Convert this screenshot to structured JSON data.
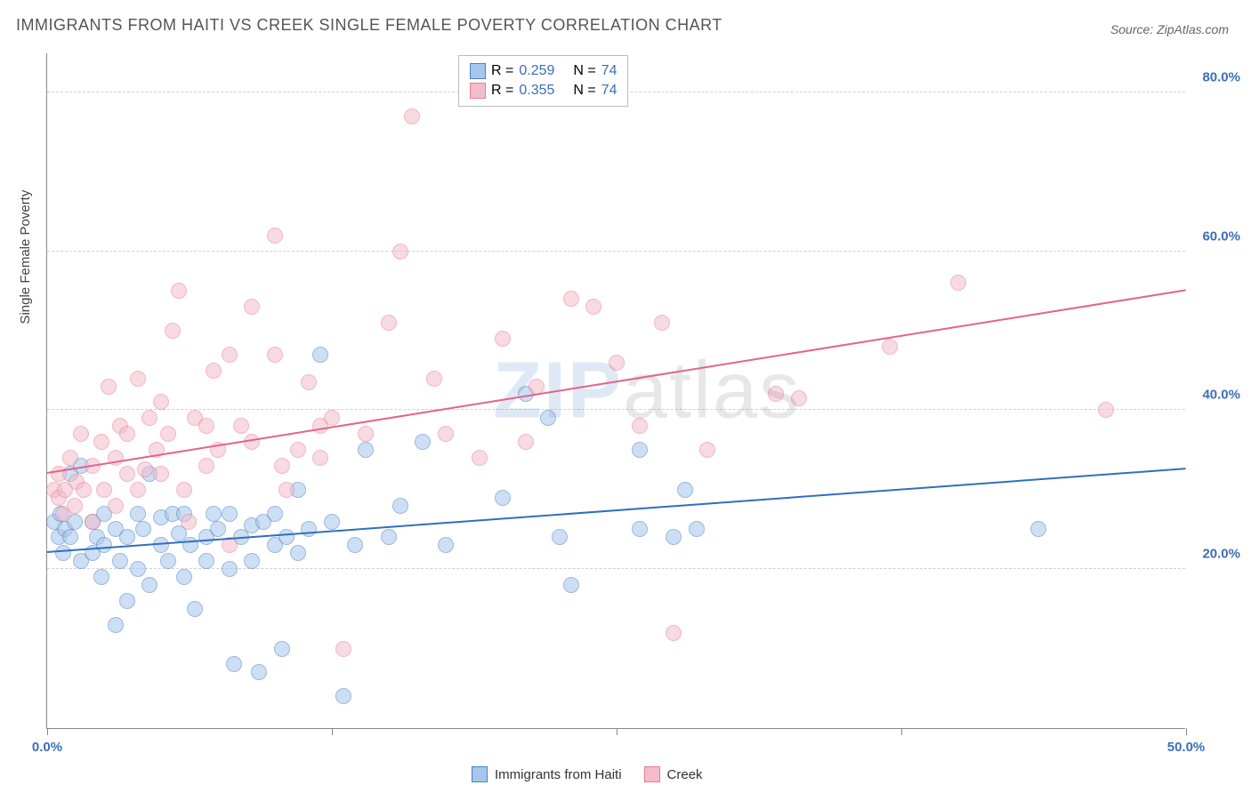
{
  "title": "IMMIGRANTS FROM HAITI VS CREEK SINGLE FEMALE POVERTY CORRELATION CHART",
  "source_label": "Source: ",
  "source_name": "ZipAtlas.com",
  "watermark_zip": "ZIP",
  "watermark_atlas": "atlas",
  "chart": {
    "type": "scatter",
    "background_color": "#ffffff",
    "grid_color": "#d0d0d0",
    "axis_color": "#888888",
    "tick_label_color": "#3b6fb5",
    "y_axis_label": "Single Female Poverty",
    "x_axis": {
      "min": 0.0,
      "max": 50.0,
      "ticks": [
        0.0,
        12.5,
        25.0,
        37.5,
        50.0
      ],
      "labels": {
        "0": "0.0%",
        "50": "50.0%"
      }
    },
    "y_axis": {
      "min": 0.0,
      "max": 85.0,
      "grid_ticks": [
        20.0,
        40.0,
        60.0,
        80.0
      ],
      "labels": {
        "20": "20.0%",
        "40": "40.0%",
        "60": "60.0%",
        "80": "80.0%"
      }
    },
    "point_radius": 9,
    "point_opacity": 0.55,
    "series": [
      {
        "name": "Immigrants from Haiti",
        "fill_color": "#a6c6ec",
        "stroke_color": "#4b7fc2",
        "R": "0.259",
        "N": "74",
        "trend": {
          "y_at_xmin": 22.0,
          "y_at_xmax": 32.5,
          "color": "#2f6fc1",
          "width": 2
        },
        "points": [
          [
            0.3,
            26
          ],
          [
            0.5,
            24
          ],
          [
            0.6,
            27
          ],
          [
            0.7,
            22
          ],
          [
            0.8,
            25
          ],
          [
            1.0,
            32
          ],
          [
            1.0,
            24
          ],
          [
            1.2,
            26
          ],
          [
            1.5,
            21
          ],
          [
            1.5,
            33
          ],
          [
            2.0,
            26
          ],
          [
            2.0,
            22
          ],
          [
            2.2,
            24
          ],
          [
            2.4,
            19
          ],
          [
            2.5,
            27
          ],
          [
            2.5,
            23
          ],
          [
            3.0,
            25
          ],
          [
            3.0,
            13
          ],
          [
            3.2,
            21
          ],
          [
            3.5,
            16
          ],
          [
            3.5,
            24
          ],
          [
            4.0,
            27
          ],
          [
            4.0,
            20
          ],
          [
            4.2,
            25
          ],
          [
            4.5,
            18
          ],
          [
            4.5,
            32
          ],
          [
            5.0,
            23
          ],
          [
            5.0,
            26.5
          ],
          [
            5.3,
            21
          ],
          [
            5.5,
            27
          ],
          [
            5.8,
            24.5
          ],
          [
            6.0,
            27
          ],
          [
            6.0,
            19
          ],
          [
            6.3,
            23
          ],
          [
            6.5,
            15
          ],
          [
            7.0,
            24
          ],
          [
            7.0,
            21
          ],
          [
            7.3,
            27
          ],
          [
            7.5,
            25
          ],
          [
            8.0,
            27
          ],
          [
            8.0,
            20
          ],
          [
            8.2,
            8
          ],
          [
            8.5,
            24
          ],
          [
            9.0,
            25.5
          ],
          [
            9.0,
            21
          ],
          [
            9.3,
            7
          ],
          [
            9.5,
            26
          ],
          [
            10.0,
            23
          ],
          [
            10.0,
            27
          ],
          [
            10.3,
            10
          ],
          [
            10.5,
            24
          ],
          [
            11.0,
            22
          ],
          [
            11.0,
            30
          ],
          [
            11.5,
            25
          ],
          [
            12.0,
            47
          ],
          [
            12.5,
            26
          ],
          [
            13.0,
            4
          ],
          [
            13.5,
            23
          ],
          [
            14.0,
            35
          ],
          [
            15.0,
            24
          ],
          [
            15.5,
            28
          ],
          [
            16.5,
            36
          ],
          [
            17.5,
            23
          ],
          [
            20.0,
            29
          ],
          [
            21.0,
            42
          ],
          [
            22.0,
            39
          ],
          [
            22.5,
            24
          ],
          [
            23.0,
            18
          ],
          [
            26.0,
            25
          ],
          [
            26.0,
            35
          ],
          [
            27.5,
            24
          ],
          [
            28.0,
            30
          ],
          [
            28.5,
            25
          ],
          [
            43.5,
            25
          ]
        ]
      },
      {
        "name": "Creek",
        "fill_color": "#f3bcc9",
        "stroke_color": "#e87b9a",
        "R": "0.355",
        "N": "74",
        "trend": {
          "y_at_xmin": 32.0,
          "y_at_xmax": 55.0,
          "color": "#e36488",
          "width": 2
        },
        "points": [
          [
            0.3,
            30
          ],
          [
            0.5,
            29
          ],
          [
            0.5,
            32
          ],
          [
            0.7,
            27
          ],
          [
            0.8,
            30
          ],
          [
            1.0,
            34
          ],
          [
            1.2,
            28
          ],
          [
            1.3,
            31
          ],
          [
            1.5,
            37
          ],
          [
            1.6,
            30
          ],
          [
            2.0,
            26
          ],
          [
            2.0,
            33
          ],
          [
            2.4,
            36
          ],
          [
            2.5,
            30
          ],
          [
            2.7,
            43
          ],
          [
            3.0,
            34
          ],
          [
            3.0,
            28
          ],
          [
            3.2,
            38
          ],
          [
            3.5,
            37
          ],
          [
            3.5,
            32
          ],
          [
            4.0,
            44
          ],
          [
            4.0,
            30
          ],
          [
            4.3,
            32.5
          ],
          [
            4.5,
            39
          ],
          [
            4.8,
            35
          ],
          [
            5.0,
            41
          ],
          [
            5.0,
            32
          ],
          [
            5.3,
            37
          ],
          [
            5.5,
            50
          ],
          [
            5.8,
            55
          ],
          [
            6.0,
            30
          ],
          [
            6.2,
            26
          ],
          [
            6.5,
            39
          ],
          [
            7.0,
            38
          ],
          [
            7.0,
            33
          ],
          [
            7.3,
            45
          ],
          [
            7.5,
            35
          ],
          [
            8.0,
            47
          ],
          [
            8.0,
            23
          ],
          [
            8.5,
            38
          ],
          [
            9.0,
            53
          ],
          [
            9.0,
            36
          ],
          [
            10.0,
            62
          ],
          [
            10.0,
            47
          ],
          [
            10.3,
            33
          ],
          [
            10.5,
            30
          ],
          [
            11.0,
            35
          ],
          [
            11.5,
            43.5
          ],
          [
            12.0,
            38
          ],
          [
            12.0,
            34
          ],
          [
            12.5,
            39
          ],
          [
            13.0,
            10
          ],
          [
            14.0,
            37
          ],
          [
            15.0,
            51
          ],
          [
            15.5,
            60
          ],
          [
            16.0,
            77
          ],
          [
            17.0,
            44
          ],
          [
            17.5,
            37
          ],
          [
            19.0,
            34
          ],
          [
            20.0,
            49
          ],
          [
            21.0,
            36
          ],
          [
            21.5,
            43
          ],
          [
            23.0,
            54
          ],
          [
            24.0,
            53
          ],
          [
            25.0,
            46
          ],
          [
            26.0,
            38
          ],
          [
            27.0,
            51
          ],
          [
            27.5,
            12
          ],
          [
            29.0,
            35
          ],
          [
            32.0,
            42
          ],
          [
            33.0,
            41.5
          ],
          [
            37.0,
            48
          ],
          [
            40.0,
            56
          ],
          [
            46.5,
            40
          ]
        ]
      }
    ],
    "top_legend": {
      "R_label": "R =",
      "N_label": "N ="
    },
    "bottom_legend_labels": [
      "Immigrants from Haiti",
      "Creek"
    ]
  }
}
